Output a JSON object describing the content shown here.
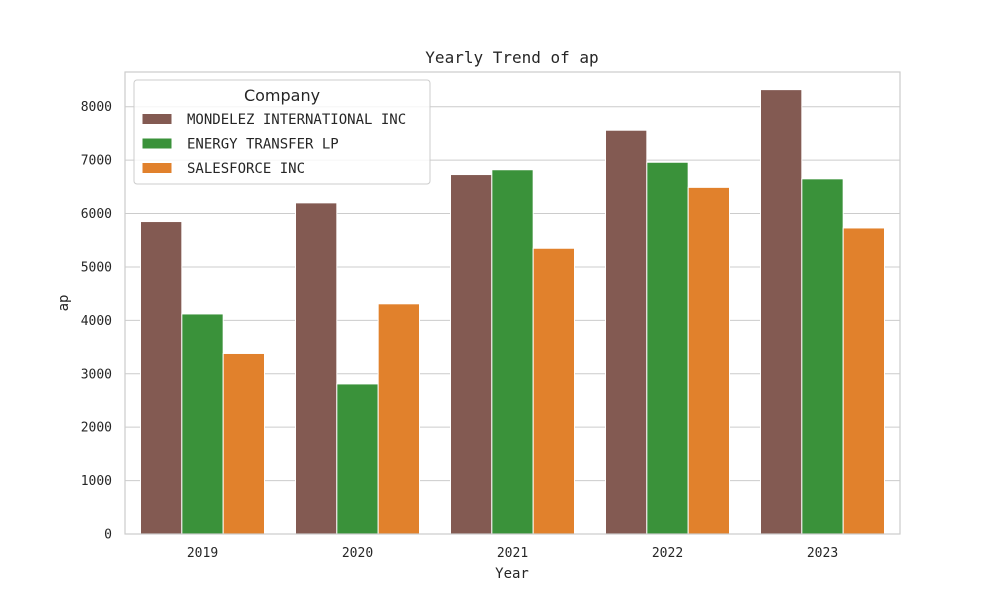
{
  "chart_data": {
    "type": "bar",
    "title": "Yearly Trend of ap",
    "xlabel": "Year",
    "ylabel": "ap",
    "categories": [
      "2019",
      "2020",
      "2021",
      "2022",
      "2023"
    ],
    "ylim": [
      0,
      8650
    ],
    "yticks": [
      0,
      1000,
      2000,
      3000,
      4000,
      5000,
      6000,
      7000,
      8000
    ],
    "grid": true,
    "legend": {
      "title": "Company",
      "placement": "top-left"
    },
    "series": [
      {
        "name": "MONDELEZ INTERNATIONAL INC",
        "color": "#835a52",
        "values": [
          5850,
          6200,
          6730,
          7560,
          8320
        ]
      },
      {
        "name": "ENERGY TRANSFER LP",
        "color": "#3a923a",
        "values": [
          4120,
          2810,
          6820,
          6960,
          6650
        ]
      },
      {
        "name": "SALESFORCE INC",
        "color": "#e1812c",
        "values": [
          3380,
          4310,
          5350,
          6490,
          5730
        ]
      }
    ]
  }
}
